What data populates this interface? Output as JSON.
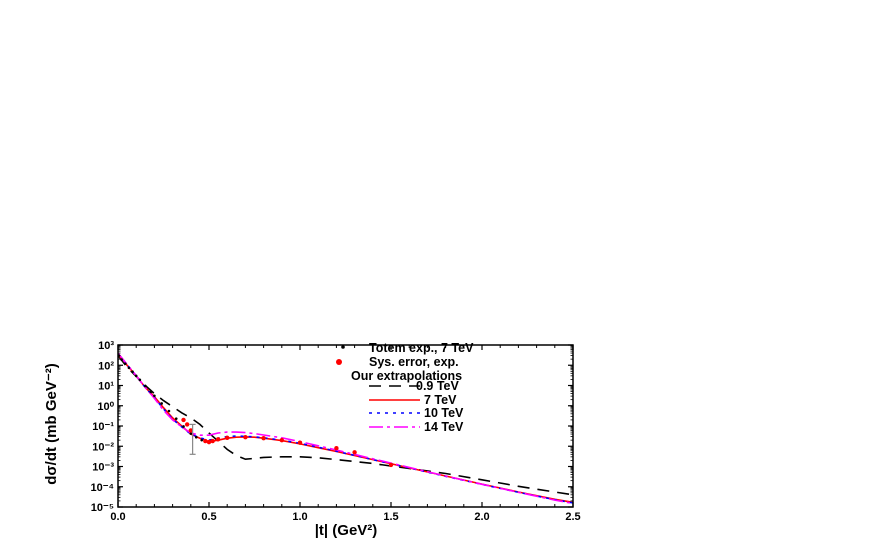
{
  "chart_data": {
    "type": "line",
    "xlabel": "|t|  (GeV²)",
    "ylabel": "dσ/dt (mb GeV⁻²)",
    "xlim": [
      0,
      2.5
    ],
    "ylim": [
      1e-05,
      1000
    ],
    "y_scale": "log",
    "x_ticks": [
      "0.0",
      "0.5",
      "1.0",
      "1.5",
      "2.0",
      "2.5"
    ],
    "x_tick_values": [
      0,
      0.5,
      1.0,
      1.5,
      2.0,
      2.5
    ],
    "y_ticks": [
      "10³",
      "10²",
      "10¹",
      "10⁰",
      "10⁻¹",
      "10⁻²",
      "10⁻³",
      "10⁻⁴",
      "10⁻⁵"
    ],
    "y_tick_values": [
      1000,
      100,
      10,
      1,
      0.1,
      0.01,
      0.001,
      0.0001,
      1e-05
    ],
    "legend_position": "top-right",
    "legend_heading": "Our extrapolations",
    "experimental": [
      {
        "name": "Totem exp., 7  TeV",
        "color": "#000000",
        "marker": "dot",
        "x": [
          0.005,
          0.02,
          0.04,
          0.06,
          0.08,
          0.1,
          0.12,
          0.15,
          0.18,
          0.2,
          0.24,
          0.28,
          0.32,
          0.36,
          0.4,
          0.43,
          0.46,
          0.48,
          0.5
        ],
        "y": [
          300,
          190,
          120,
          75,
          48,
          30,
          19,
          9.5,
          4.8,
          3.1,
          1.3,
          0.55,
          0.23,
          0.095,
          0.042,
          0.028,
          0.02,
          0.018,
          0.017
        ]
      },
      {
        "name": "Sys. error, exp.",
        "color": "#ff0000",
        "marker": "dot",
        "x": [
          0.36,
          0.38,
          0.4,
          0.48,
          0.5,
          0.52,
          0.55,
          0.6,
          0.7,
          0.8,
          0.9,
          1.0,
          1.2,
          1.3,
          1.5
        ],
        "y": [
          0.2,
          0.12,
          0.06,
          0.018,
          0.016,
          0.018,
          0.022,
          0.026,
          0.028,
          0.025,
          0.02,
          0.015,
          0.008,
          0.005,
          0.0012
        ]
      }
    ],
    "error_bar": {
      "x": 0.41,
      "y_low": 0.004,
      "y_high": 0.12,
      "color": "#888888"
    },
    "series": [
      {
        "name": "0.9 TeV",
        "color": "#000000",
        "dash": "12 8",
        "x": [
          0,
          0.05,
          0.1,
          0.15,
          0.2,
          0.25,
          0.3,
          0.35,
          0.4,
          0.45,
          0.5,
          0.55,
          0.6,
          0.65,
          0.7,
          0.75,
          0.8,
          0.9,
          1.0,
          1.1,
          1.2,
          1.4,
          1.6,
          1.8,
          2.0,
          2.2,
          2.4,
          2.5
        ],
        "y": [
          300,
          80,
          28,
          10,
          4,
          1.8,
          0.9,
          0.45,
          0.25,
          0.12,
          0.045,
          0.018,
          0.007,
          0.0035,
          0.0023,
          0.0025,
          0.0028,
          0.003,
          0.003,
          0.0027,
          0.0022,
          0.0014,
          0.0008,
          0.00045,
          0.00022,
          0.000105,
          5.5e-05,
          4e-05
        ]
      },
      {
        "name": "7 TeV",
        "color": "#ff0000",
        "dash": "",
        "x": [
          0,
          0.05,
          0.1,
          0.15,
          0.2,
          0.25,
          0.3,
          0.35,
          0.4,
          0.45,
          0.5,
          0.55,
          0.6,
          0.65,
          0.7,
          0.75,
          0.8,
          0.9,
          1.0,
          1.1,
          1.2,
          1.4,
          1.6,
          1.8,
          2.0,
          2.2,
          2.4,
          2.5
        ],
        "y": [
          350,
          100,
          30,
          8,
          2.8,
          0.8,
          0.25,
          0.1,
          0.04,
          0.025,
          0.017,
          0.02,
          0.025,
          0.028,
          0.029,
          0.028,
          0.025,
          0.019,
          0.013,
          0.0085,
          0.0055,
          0.0022,
          0.00085,
          0.00034,
          0.000135,
          5.5e-05,
          2.4e-05,
          1.7e-05
        ]
      },
      {
        "name": "10 TeV",
        "color": "#0000ff",
        "dash": "3 5",
        "x": [
          0,
          0.05,
          0.1,
          0.15,
          0.2,
          0.25,
          0.3,
          0.35,
          0.4,
          0.45,
          0.5,
          0.55,
          0.6,
          0.65,
          0.7,
          0.75,
          0.8,
          0.9,
          1.0,
          1.1,
          1.2,
          1.4,
          1.6,
          1.8,
          2.0,
          2.2,
          2.4,
          2.5
        ],
        "y": [
          370,
          105,
          30,
          8,
          2.5,
          0.7,
          0.22,
          0.09,
          0.04,
          0.026,
          0.02,
          0.025,
          0.03,
          0.032,
          0.031,
          0.029,
          0.026,
          0.02,
          0.014,
          0.009,
          0.0057,
          0.0022,
          0.00085,
          0.00033,
          0.00013,
          5.3e-05,
          2.3e-05,
          1.6e-05
        ]
      },
      {
        "name": "14 TeV",
        "color": "#ff00ff",
        "dash": "14 4 3 4",
        "x": [
          0,
          0.05,
          0.1,
          0.15,
          0.2,
          0.25,
          0.3,
          0.35,
          0.4,
          0.45,
          0.5,
          0.55,
          0.6,
          0.65,
          0.7,
          0.75,
          0.8,
          0.9,
          1.0,
          1.1,
          1.2,
          1.4,
          1.6,
          1.8,
          2.0,
          2.2,
          2.4,
          2.5
        ],
        "y": [
          400,
          110,
          30,
          8,
          2.3,
          0.6,
          0.2,
          0.09,
          0.045,
          0.035,
          0.035,
          0.045,
          0.05,
          0.05,
          0.047,
          0.042,
          0.036,
          0.026,
          0.017,
          0.0105,
          0.0065,
          0.0024,
          0.0009,
          0.00034,
          0.000132,
          5.3e-05,
          2.2e-05,
          1.5e-05
        ]
      }
    ]
  }
}
